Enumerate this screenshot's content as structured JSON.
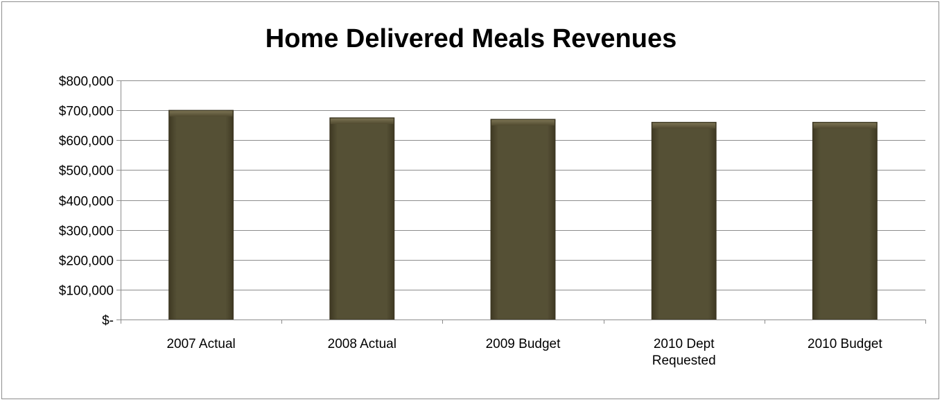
{
  "chart_data": {
    "type": "bar",
    "title": "Home Delivered Meals Revenues",
    "categories": [
      [
        "2007 Actual"
      ],
      [
        "2008 Actual"
      ],
      [
        "2009 Budget"
      ],
      [
        "2010 Dept",
        "Requested"
      ],
      [
        "2010 Budget"
      ]
    ],
    "values": [
      700000,
      675000,
      670000,
      660000,
      660000
    ],
    "ylim": [
      0,
      800000
    ],
    "y_tick_labels": [
      "$-",
      "$100,000",
      "$200,000",
      "$300,000",
      "$400,000",
      "$500,000",
      "$600,000",
      "$700,000",
      "$800,000"
    ],
    "xlabel": "",
    "ylabel": "",
    "grid": true,
    "legend": "none",
    "colors": {
      "bar": "#514a30",
      "bar_edge": "#3a3420",
      "bar_highlight": "#6b6346",
      "gridline": "#8c8c8c",
      "axis": "#8c8c8c"
    }
  }
}
